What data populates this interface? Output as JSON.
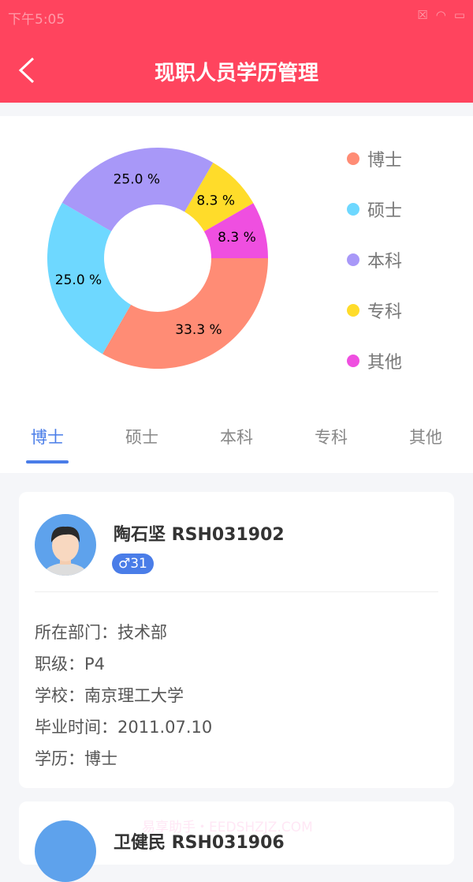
{
  "status": {
    "time": "下午5:05"
  },
  "header": {
    "title": "现职人员学历管理"
  },
  "chart_data": {
    "type": "pie",
    "donut": true,
    "categories": [
      "博士",
      "硕士",
      "本科",
      "专科",
      "其他"
    ],
    "values": [
      33.3,
      25.0,
      25.0,
      8.3,
      8.3
    ],
    "labels": [
      "33.3 %",
      "25.0 %",
      "25.0 %",
      "8.3 %",
      "8.3 %"
    ],
    "colors": [
      "#ff8c75",
      "#6ed8ff",
      "#a898f8",
      "#ffdc2a",
      "#ef4fe0"
    ],
    "legend": "right"
  },
  "tabs": [
    "博士",
    "硕士",
    "本科",
    "专科",
    "其他"
  ],
  "cards": [
    {
      "name": "陶石坚 RSH031902",
      "badge": "♂31",
      "rows": [
        "所在部门：技术部",
        "职级：P4",
        "学校：南京理工大学",
        "毕业时间：2011.07.10",
        "学历：博士"
      ]
    },
    {
      "name": "卫健民 RSH031906"
    }
  ],
  "watermark": "易享助手・EEDSHZJZ.COM"
}
